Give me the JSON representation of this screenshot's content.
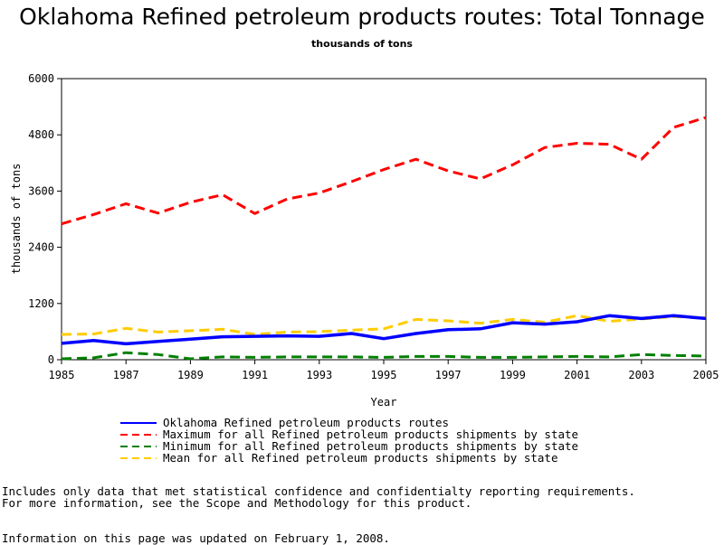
{
  "title": "Oklahoma Refined petroleum products routes: Total Tonnage",
  "subtitle": "thousands of tons",
  "chart_data": {
    "type": "line",
    "xlabel": "Year",
    "ylabel": "thousands of tons",
    "xlim": [
      1985,
      2005
    ],
    "ylim": [
      0,
      6000
    ],
    "x_ticks": [
      "1985",
      "1987",
      "1989",
      "1991",
      "1993",
      "1995",
      "1997",
      "1999",
      "2001",
      "2003",
      "2005"
    ],
    "y_ticks": [
      "0",
      "1200",
      "2400",
      "3600",
      "4800",
      "6000"
    ],
    "grid": false,
    "legend_position": "bottom",
    "x": [
      1985,
      1986,
      1987,
      1988,
      1989,
      1990,
      1991,
      1992,
      1993,
      1994,
      1995,
      1996,
      1997,
      1998,
      1999,
      2000,
      2001,
      2002,
      2003,
      2004,
      2005
    ],
    "series": [
      {
        "name": "Oklahoma Refined petroleum products routes",
        "color": "#0000ff",
        "style": "solid",
        "values": [
          350,
          410,
          340,
          390,
          440,
          490,
          500,
          510,
          500,
          560,
          450,
          560,
          640,
          660,
          790,
          760,
          810,
          940,
          880,
          940,
          880
        ]
      },
      {
        "name": "Maximum for all Refined petroleum products shipments by state",
        "color": "#ff0000",
        "style": "dashed",
        "values": [
          2900,
          3100,
          3330,
          3130,
          3360,
          3520,
          3120,
          3430,
          3560,
          3800,
          4060,
          4280,
          4030,
          3860,
          4160,
          4530,
          4620,
          4600,
          4280,
          4960,
          5170
        ]
      },
      {
        "name": "Minimum for all Refined petroleum products shipments by state",
        "color": "#008000",
        "style": "dashed",
        "values": [
          20,
          40,
          150,
          110,
          20,
          60,
          50,
          60,
          60,
          60,
          50,
          70,
          70,
          50,
          50,
          60,
          70,
          60,
          110,
          90,
          80
        ]
      },
      {
        "name": "Mean for all Refined petroleum products shipments by state",
        "color": "#ffcc00",
        "style": "dashed",
        "values": [
          540,
          550,
          670,
          590,
          620,
          650,
          540,
          590,
          600,
          630,
          660,
          860,
          830,
          780,
          860,
          800,
          940,
          820,
          870,
          920,
          900
        ]
      }
    ]
  },
  "notes": {
    "line1": "Includes only data that met statistical confidence and confidentialty reporting requirements.",
    "line2": "For more information, see the Scope and Methodology for this product.",
    "line3": "Information on this page was updated on February 1, 2008."
  }
}
